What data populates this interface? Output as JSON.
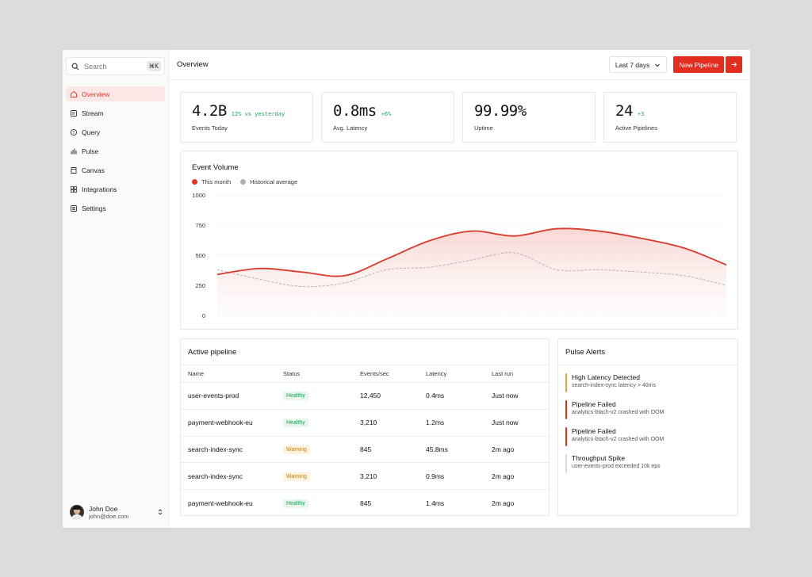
{
  "sidebar": {
    "search_placeholder": "Search",
    "shortcut": "⌘K",
    "items": [
      {
        "label": "Overview",
        "icon": "home-icon",
        "active": true
      },
      {
        "label": "Stream",
        "icon": "stream-icon"
      },
      {
        "label": "Query",
        "icon": "query-icon"
      },
      {
        "label": "Pulse",
        "icon": "pulse-icon"
      },
      {
        "label": "Canvas",
        "icon": "canvas-icon"
      },
      {
        "label": "Integrations",
        "icon": "integrations-icon"
      },
      {
        "label": "Settings",
        "icon": "settings-icon"
      }
    ],
    "user": {
      "name": "John Doe",
      "email": "john@doe.com"
    }
  },
  "header": {
    "title": "Overview",
    "range": "Last 7 days",
    "new_pipeline": "New Pipeline"
  },
  "stats": [
    {
      "value": "4.2B",
      "delta": "12% vs yesterday",
      "label": "Events Today"
    },
    {
      "value": "0.8ms",
      "delta": "+6%",
      "label": "Avg. Latency"
    },
    {
      "value": "99.99%",
      "delta": "",
      "label": "Uptime"
    },
    {
      "value": "24",
      "delta": "+3",
      "label": "Active Pipelines"
    }
  ],
  "colors": {
    "accent": "#e32d1f",
    "healthy": "#1f9a53",
    "warning": "#b9821a",
    "historical": "#b0b0b0"
  },
  "chart_data": {
    "type": "area",
    "title": "Event Volume",
    "ylim": [
      0,
      1000
    ],
    "yticks": [
      "1000",
      "750",
      "500",
      "250",
      "0"
    ],
    "x": [
      0,
      1,
      2,
      3,
      4,
      5,
      6,
      7,
      8,
      9,
      10,
      11,
      12
    ],
    "series": [
      {
        "name": "This month",
        "color": "#d93a2b",
        "values": [
          340,
          390,
          360,
          330,
          470,
          620,
          700,
          660,
          720,
          700,
          640,
          560,
          420
        ]
      },
      {
        "name": "Historical average",
        "color": "#b0b0b0",
        "values": [
          380,
          300,
          240,
          270,
          380,
          400,
          460,
          520,
          380,
          380,
          360,
          330,
          250
        ]
      }
    ]
  },
  "pipeline": {
    "title": "Active pipeline",
    "headers": [
      "Name",
      "Status",
      "Events/sec",
      "Latency",
      "Last run"
    ],
    "rows": [
      {
        "name": "user-events-prod",
        "status": "Healthy",
        "eps": "12,450",
        "latency": "0.4ms",
        "last": "Just now"
      },
      {
        "name": "payment-webhook-eu",
        "status": "Healthy",
        "eps": "3,210",
        "latency": "1.2ms",
        "last": "Just now"
      },
      {
        "name": "search-index-sync",
        "status": "Warning",
        "eps": "845",
        "latency": "45.8ms",
        "last": "2m ago"
      },
      {
        "name": "search-index-sync",
        "status": "Warning",
        "eps": "3,210",
        "latency": "0.9ms",
        "last": "2m ago"
      },
      {
        "name": "payment-webhook-eu",
        "status": "Healthy",
        "eps": "845",
        "latency": "1.4ms",
        "last": "2m ago"
      }
    ]
  },
  "alerts": {
    "title": "Pulse Alerts",
    "items": [
      {
        "title": "High Latency Detected",
        "desc": "search-index-sync latency > 40ms",
        "color": "#e2a236"
      },
      {
        "title": "Pipeline Failed",
        "desc": "analytics-btach-v2 crashed with OOM",
        "color": "#e32d1f"
      },
      {
        "title": "Pipeline Failed",
        "desc": "analytics-btach-v2 crashed with OOM",
        "color": "#e32d1f"
      },
      {
        "title": "Throughput Spike",
        "desc": "user-events-prod exceeded 10k eps",
        "color": "#d6d6d6"
      }
    ]
  }
}
